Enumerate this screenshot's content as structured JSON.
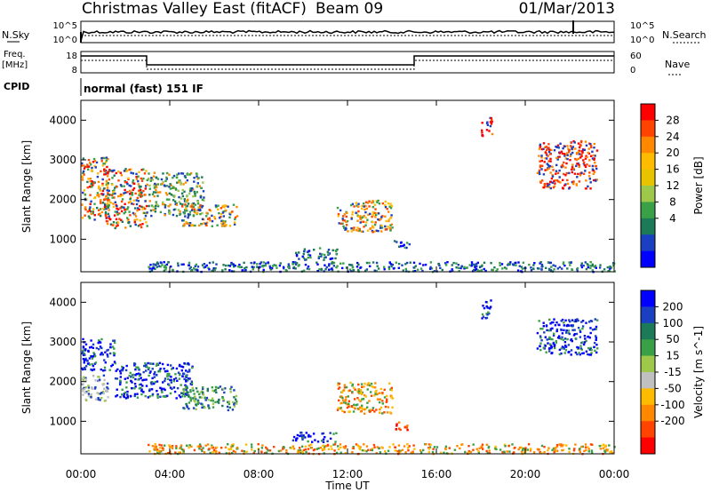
{
  "header": {
    "station": "Christmas Valley East (fitACF)",
    "beam": "Beam 09",
    "date": "01/Mar/2013"
  },
  "top_panels": {
    "nsky_label": "N.Sky",
    "nsky_ticks": [
      "10^5",
      "10^0"
    ],
    "nsearch_label": "N.Search",
    "nsearch_ticks": [
      "10^5",
      "10^0"
    ],
    "freq_label": "Freq.",
    "freq_unit": "[MHz]",
    "freq_ticks": [
      "18",
      "8"
    ],
    "nave_label": "Nave",
    "nave_ticks": [
      "60",
      "0"
    ],
    "cpid_label": "CPID",
    "cpid_value": "normal (fast) 151 IF"
  },
  "chart_data": [
    {
      "type": "heatmap",
      "name": "power",
      "ylabel": "Slant Range [km]",
      "xlabel": "",
      "xlim": [
        0,
        24
      ],
      "ylim": [
        180,
        4500
      ],
      "yticks": [
        "4000",
        "3000",
        "2000",
        "1000"
      ],
      "colorbar": {
        "label": "Power [dB]",
        "ticks": [
          "28",
          "24",
          "20",
          "16",
          "12",
          "8",
          "4"
        ],
        "colors": [
          "#ff0000",
          "#ff4400",
          "#ff8800",
          "#ffbb00",
          "#e8c400",
          "#9ec84a",
          "#3aa048",
          "#1c7a58",
          "#1a3fc0",
          "#0000ff"
        ]
      },
      "patches": [
        {
          "t": [
            0.0,
            1.2
          ],
          "r": [
            1500,
            3100
          ],
          "c": "mixed"
        },
        {
          "t": [
            1.0,
            3.0
          ],
          "r": [
            1300,
            2800
          ],
          "c": "mixed"
        },
        {
          "t": [
            3.0,
            5.5
          ],
          "r": [
            1600,
            2700
          ],
          "c": "green"
        },
        {
          "t": [
            4.5,
            7.0
          ],
          "r": [
            1350,
            1900
          ],
          "c": "orange"
        },
        {
          "t": [
            9.5,
            11.5
          ],
          "r": [
            500,
            800
          ],
          "c": "blue"
        },
        {
          "t": [
            11.5,
            14.0
          ],
          "r": [
            1200,
            2000
          ],
          "c": "orange"
        },
        {
          "t": [
            14.0,
            14.8
          ],
          "r": [
            800,
            1000
          ],
          "c": "blue"
        },
        {
          "t": [
            18.0,
            18.5
          ],
          "r": [
            3600,
            4100
          ],
          "c": "red"
        },
        {
          "t": [
            20.5,
            23.2
          ],
          "r": [
            2300,
            3500
          ],
          "c": "red"
        },
        {
          "t": [
            3.0,
            24.0
          ],
          "r": [
            200,
            450
          ],
          "c": "blue"
        }
      ]
    },
    {
      "type": "heatmap",
      "name": "velocity",
      "ylabel": "Slant Range [km]",
      "xlabel": "Time UT",
      "xticks": [
        "00:00",
        "04:00",
        "08:00",
        "12:00",
        "16:00",
        "20:00",
        "00:00"
      ],
      "xlim": [
        0,
        24
      ],
      "ylim": [
        180,
        4500
      ],
      "yticks": [
        "4000",
        "3000",
        "2000",
        "1000"
      ],
      "colorbar": {
        "label": "Velocity [m s^-1]",
        "ticks": [
          "200",
          "100",
          "50",
          "15",
          "-15",
          "-50",
          "-100",
          "-200"
        ],
        "colors": [
          "#0000ff",
          "#1a3fc0",
          "#1c7a58",
          "#3aa048",
          "#9ec84a",
          "#c0c0c0",
          "#ffbb00",
          "#ff8800",
          "#ff4400",
          "#ff0000"
        ]
      },
      "patches": [
        {
          "t": [
            0.0,
            1.2
          ],
          "r": [
            1500,
            2200
          ],
          "c": "gray"
        },
        {
          "t": [
            0.0,
            1.5
          ],
          "r": [
            2300,
            3100
          ],
          "c": "blue"
        },
        {
          "t": [
            1.5,
            5.0
          ],
          "r": [
            1600,
            2500
          ],
          "c": "blue"
        },
        {
          "t": [
            4.5,
            7.0
          ],
          "r": [
            1300,
            1900
          ],
          "c": "green"
        },
        {
          "t": [
            9.5,
            11.5
          ],
          "r": [
            500,
            750
          ],
          "c": "blue"
        },
        {
          "t": [
            11.5,
            14.0
          ],
          "r": [
            1200,
            2000
          ],
          "c": "orange"
        },
        {
          "t": [
            14.0,
            14.8
          ],
          "r": [
            800,
            1000
          ],
          "c": "red"
        },
        {
          "t": [
            18.0,
            18.5
          ],
          "r": [
            3600,
            4100
          ],
          "c": "blue"
        },
        {
          "t": [
            20.5,
            23.2
          ],
          "r": [
            2700,
            3600
          ],
          "c": "blue"
        },
        {
          "t": [
            3.0,
            24.0
          ],
          "r": [
            200,
            450
          ],
          "c": "orange"
        }
      ]
    }
  ]
}
